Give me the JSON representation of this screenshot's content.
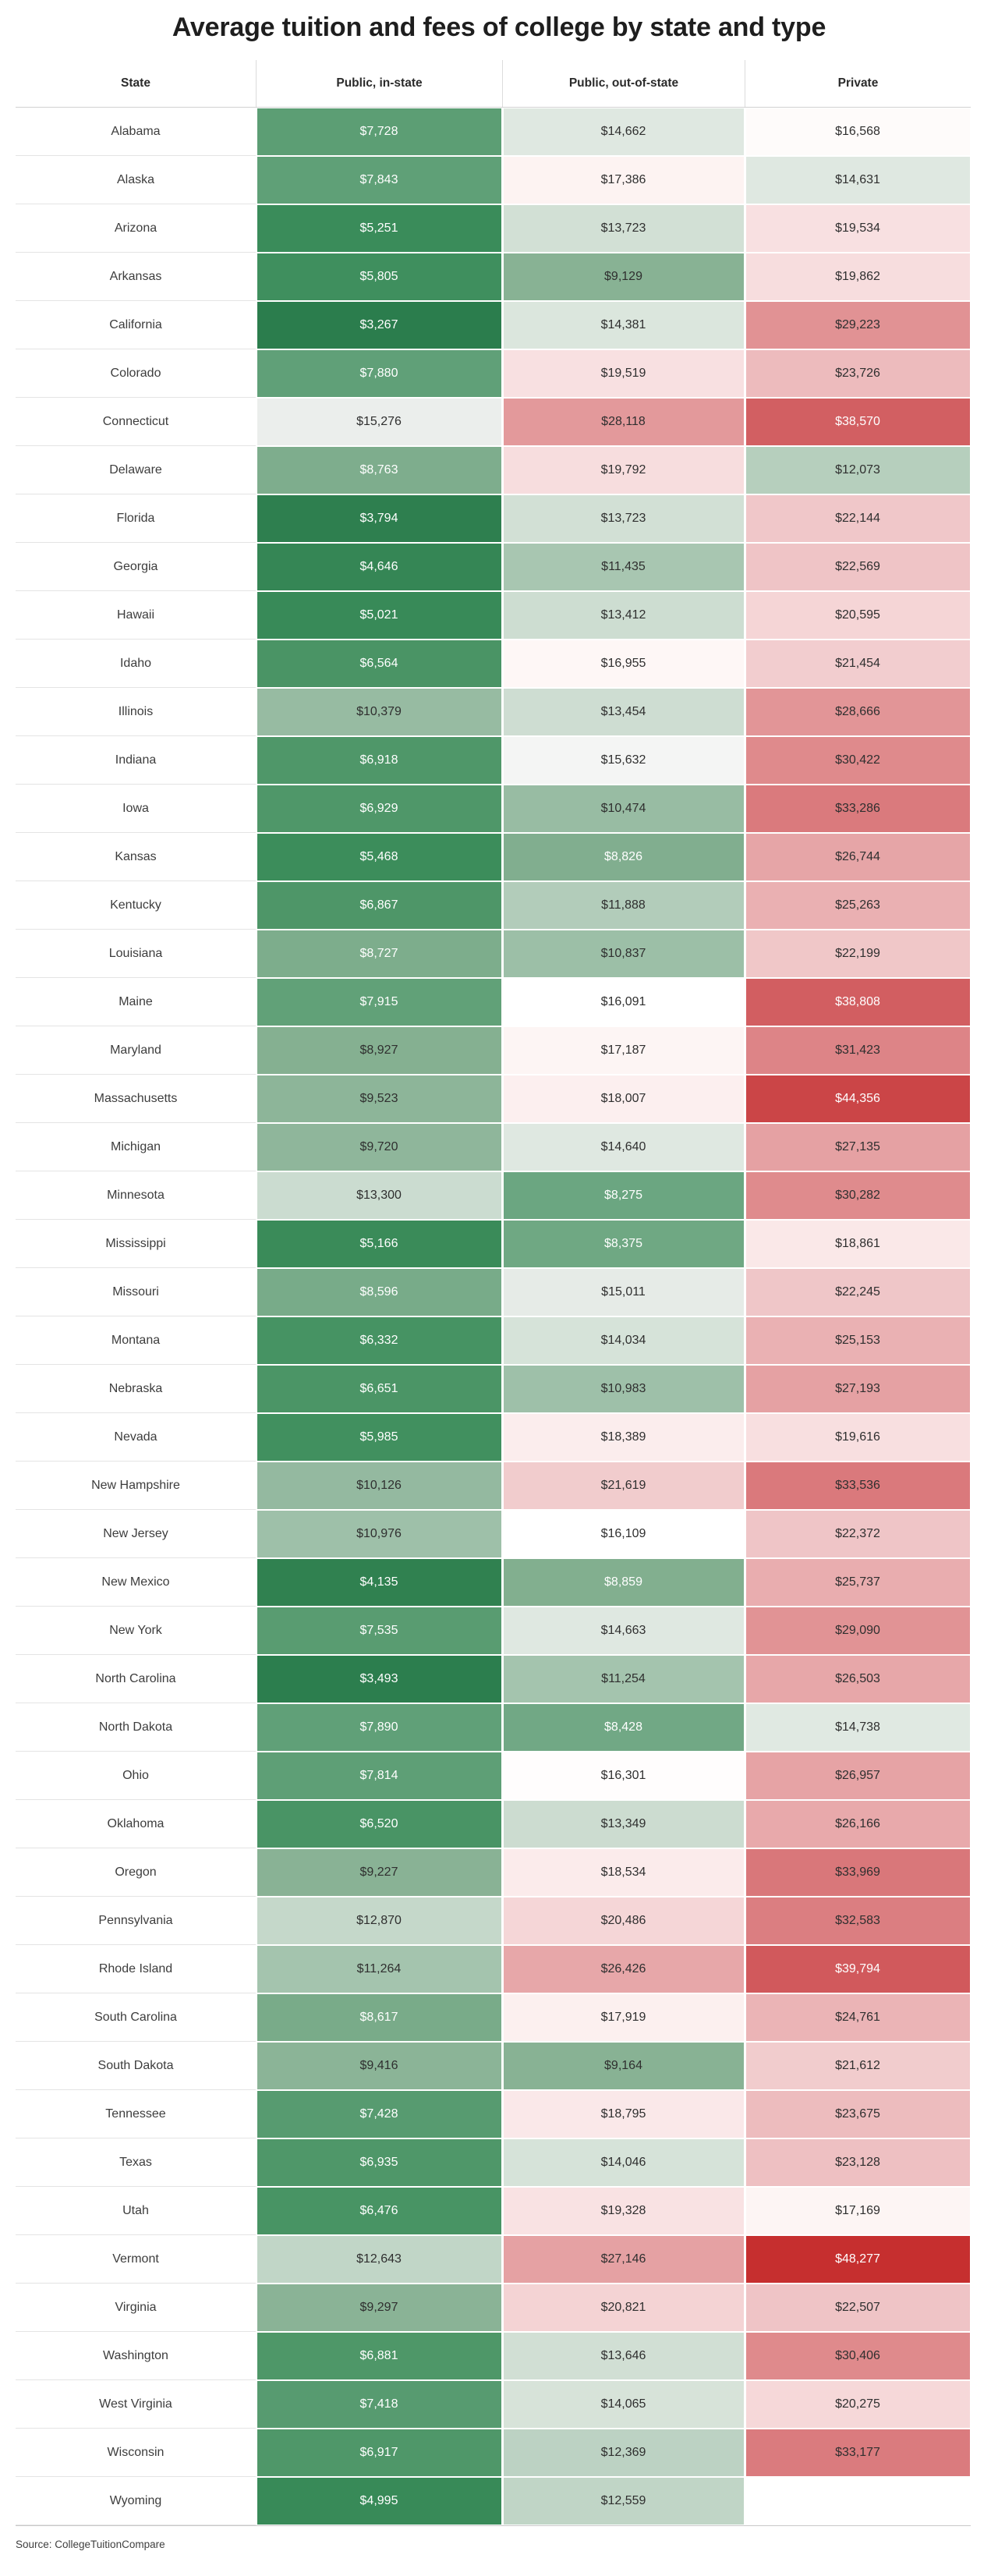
{
  "chart_data": {
    "type": "heatmap",
    "title": "Average tuition and fees of college by state and type",
    "columns": [
      "State",
      "Public, in-state",
      "Public, out-of-state",
      "Private"
    ],
    "value_format": "usd_thousands",
    "rows": [
      {
        "state": "Alabama",
        "values": [
          7728,
          14662,
          16568
        ]
      },
      {
        "state": "Alaska",
        "values": [
          7843,
          17386,
          14631
        ]
      },
      {
        "state": "Arizona",
        "values": [
          5251,
          13723,
          19534
        ]
      },
      {
        "state": "Arkansas",
        "values": [
          5805,
          9129,
          19862
        ]
      },
      {
        "state": "California",
        "values": [
          3267,
          14381,
          29223
        ]
      },
      {
        "state": "Colorado",
        "values": [
          7880,
          19519,
          23726
        ]
      },
      {
        "state": "Connecticut",
        "values": [
          15276,
          28118,
          38570
        ]
      },
      {
        "state": "Delaware",
        "values": [
          8763,
          19792,
          12073
        ]
      },
      {
        "state": "Florida",
        "values": [
          3794,
          13723,
          22144
        ]
      },
      {
        "state": "Georgia",
        "values": [
          4646,
          11435,
          22569
        ]
      },
      {
        "state": "Hawaii",
        "values": [
          5021,
          13412,
          20595
        ]
      },
      {
        "state": "Idaho",
        "values": [
          6564,
          16955,
          21454
        ]
      },
      {
        "state": "Illinois",
        "values": [
          10379,
          13454,
          28666
        ]
      },
      {
        "state": "Indiana",
        "values": [
          6918,
          15632,
          30422
        ]
      },
      {
        "state": "Iowa",
        "values": [
          6929,
          10474,
          33286
        ]
      },
      {
        "state": "Kansas",
        "values": [
          5468,
          8826,
          26744
        ]
      },
      {
        "state": "Kentucky",
        "values": [
          6867,
          11888,
          25263
        ]
      },
      {
        "state": "Louisiana",
        "values": [
          8727,
          10837,
          22199
        ]
      },
      {
        "state": "Maine",
        "values": [
          7915,
          16091,
          38808
        ]
      },
      {
        "state": "Maryland",
        "values": [
          8927,
          17187,
          31423
        ]
      },
      {
        "state": "Massachusetts",
        "values": [
          9523,
          18007,
          44356
        ]
      },
      {
        "state": "Michigan",
        "values": [
          9720,
          14640,
          27135
        ]
      },
      {
        "state": "Minnesota",
        "values": [
          13300,
          8275,
          30282
        ]
      },
      {
        "state": "Mississippi",
        "values": [
          5166,
          8375,
          18861
        ]
      },
      {
        "state": "Missouri",
        "values": [
          8596,
          15011,
          22245
        ]
      },
      {
        "state": "Montana",
        "values": [
          6332,
          14034,
          25153
        ]
      },
      {
        "state": "Nebraska",
        "values": [
          6651,
          10983,
          27193
        ]
      },
      {
        "state": "Nevada",
        "values": [
          5985,
          18389,
          19616
        ]
      },
      {
        "state": "New Hampshire",
        "values": [
          10126,
          21619,
          33536
        ]
      },
      {
        "state": "New Jersey",
        "values": [
          10976,
          16109,
          22372
        ]
      },
      {
        "state": "New Mexico",
        "values": [
          4135,
          8859,
          25737
        ]
      },
      {
        "state": "New York",
        "values": [
          7535,
          14663,
          29090
        ]
      },
      {
        "state": "North Carolina",
        "values": [
          3493,
          11254,
          26503
        ]
      },
      {
        "state": "North Dakota",
        "values": [
          7890,
          8428,
          14738
        ]
      },
      {
        "state": "Ohio",
        "values": [
          7814,
          16301,
          26957
        ]
      },
      {
        "state": "Oklahoma",
        "values": [
          6520,
          13349,
          26166
        ]
      },
      {
        "state": "Oregon",
        "values": [
          9227,
          18534,
          33969
        ]
      },
      {
        "state": "Pennsylvania",
        "values": [
          12870,
          20486,
          32583
        ]
      },
      {
        "state": "Rhode Island",
        "values": [
          11264,
          26426,
          39794
        ]
      },
      {
        "state": "South Carolina",
        "values": [
          8617,
          17919,
          24761
        ]
      },
      {
        "state": "South Dakota",
        "values": [
          9416,
          9164,
          21612
        ]
      },
      {
        "state": "Tennessee",
        "values": [
          7428,
          18795,
          23675
        ]
      },
      {
        "state": "Texas",
        "values": [
          6935,
          14046,
          23128
        ]
      },
      {
        "state": "Utah",
        "values": [
          6476,
          19328,
          17169
        ]
      },
      {
        "state": "Vermont",
        "values": [
          12643,
          27146,
          48277
        ]
      },
      {
        "state": "Virginia",
        "values": [
          9297,
          20821,
          22507
        ]
      },
      {
        "state": "Washington",
        "values": [
          6881,
          13646,
          30406
        ]
      },
      {
        "state": "West Virginia",
        "values": [
          7418,
          14065,
          20275
        ]
      },
      {
        "state": "Wisconsin",
        "values": [
          6917,
          12369,
          33177
        ]
      },
      {
        "state": "Wyoming",
        "values": [
          4995,
          12559,
          null
        ]
      }
    ],
    "source": "Source: CollegeTuitionCompare",
    "color_scale": {
      "description": "diverging green-white-red by value",
      "anchors": [
        [
          3267,
          "#2b7d4d"
        ],
        [
          4135,
          "#308150"
        ],
        [
          4995,
          "#388a58"
        ],
        [
          5985,
          "#41905f"
        ],
        [
          6935,
          "#4f9769"
        ],
        [
          7728,
          "#5c9e74"
        ],
        [
          8275,
          "#6ba681"
        ],
        [
          8927,
          "#85b091"
        ],
        [
          9720,
          "#8fb69b"
        ],
        [
          10976,
          "#9ec0a9"
        ],
        [
          12559,
          "#c0d5c6"
        ],
        [
          13723,
          "#d2e0d5"
        ],
        [
          14662,
          "#dfe8e1"
        ],
        [
          15276,
          "#ebeeec"
        ],
        [
          16109,
          "#ffffff"
        ],
        [
          17386,
          "#fdf3f2"
        ],
        [
          18389,
          "#fbeded"
        ],
        [
          19616,
          "#f8dfe0"
        ],
        [
          20821,
          "#f4d3d4"
        ],
        [
          22372,
          "#efc5c7"
        ],
        [
          25737,
          "#e9adaf"
        ],
        [
          28118,
          "#e3999b"
        ],
        [
          30422,
          "#df8a8c"
        ],
        [
          33286,
          "#da7a7d"
        ],
        [
          38570,
          "#d25f62"
        ],
        [
          44356,
          "#cb4547"
        ],
        [
          48277,
          "#c62f2f"
        ]
      ],
      "white_text_below": 8900,
      "white_text_above": 36000
    }
  }
}
